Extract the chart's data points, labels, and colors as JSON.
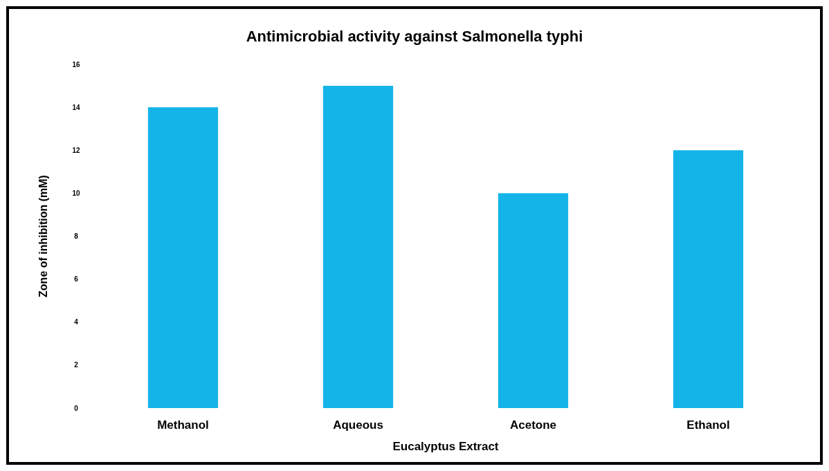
{
  "chart_data": {
    "type": "bar",
    "title": "Antimicrobial activity against Salmonella typhi",
    "xlabel": "Eucalyptus Extract",
    "ylabel": "Zone of inhibition (mM)",
    "categories": [
      "Methanol",
      "Aqueous",
      "Acetone",
      "Ethanol"
    ],
    "values": [
      14,
      15,
      10,
      12
    ],
    "color": "#14b4e8",
    "ylim": [
      0,
      16
    ],
    "yticks": [
      0,
      2,
      4,
      6,
      8,
      10,
      12,
      14,
      16
    ],
    "grid": false
  }
}
